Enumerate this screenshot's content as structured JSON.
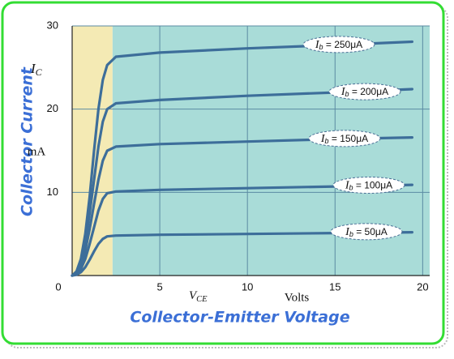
{
  "chart_data": {
    "type": "line",
    "y_title": "Collector Current",
    "x_title": "Collector-Emitter Voltage",
    "y_label": "IC",
    "y_unit": "mA",
    "x_label": "VCE",
    "x_unit": "Volts",
    "x": [
      0,
      0.25,
      0.5,
      0.75,
      1,
      1.25,
      1.5,
      1.75,
      2,
      2.5,
      5,
      10,
      15,
      19.4
    ],
    "series": [
      {
        "name": "Ib = 250μA",
        "color": "#3d6e9a",
        "values": [
          0,
          0.5,
          2,
          5,
          9.5,
          15,
          20,
          23.5,
          25.3,
          26.3,
          26.8,
          27.3,
          27.7,
          28.1
        ]
      },
      {
        "name": "Ib = 200μA",
        "color": "#3d6e9a",
        "values": [
          0,
          0.4,
          1.6,
          4,
          7.5,
          11.5,
          15.5,
          18.5,
          20,
          20.7,
          21.1,
          21.6,
          22,
          22.4
        ]
      },
      {
        "name": "Ib = 150μA",
        "color": "#3d6e9a",
        "values": [
          0,
          0.3,
          1.2,
          3,
          5.6,
          8.6,
          11.5,
          13.8,
          15,
          15.5,
          15.8,
          16.1,
          16.4,
          16.6
        ]
      },
      {
        "name": "Ib = 100μA",
        "color": "#3d6e9a",
        "values": [
          0,
          0.2,
          0.8,
          2,
          3.8,
          5.8,
          7.8,
          9.2,
          9.9,
          10.1,
          10.3,
          10.5,
          10.7,
          10.9
        ]
      },
      {
        "name": "Ib = 50μA",
        "color": "#3d6e9a",
        "values": [
          0,
          0.1,
          0.4,
          1,
          1.9,
          2.9,
          3.8,
          4.4,
          4.7,
          4.8,
          4.9,
          5,
          5.1,
          5.2
        ]
      }
    ],
    "xlim": [
      0,
      20.4
    ],
    "ylim": [
      0,
      30
    ],
    "xticks": [
      0,
      5,
      10,
      15,
      20
    ],
    "yticks": [
      10,
      20,
      30
    ],
    "grid": true,
    "grid_color": "#5b8ba3",
    "saturation_region": [
      0,
      2.3
    ],
    "region_colors": [
      "#f4eab4",
      "#a9dcd8"
    ]
  }
}
